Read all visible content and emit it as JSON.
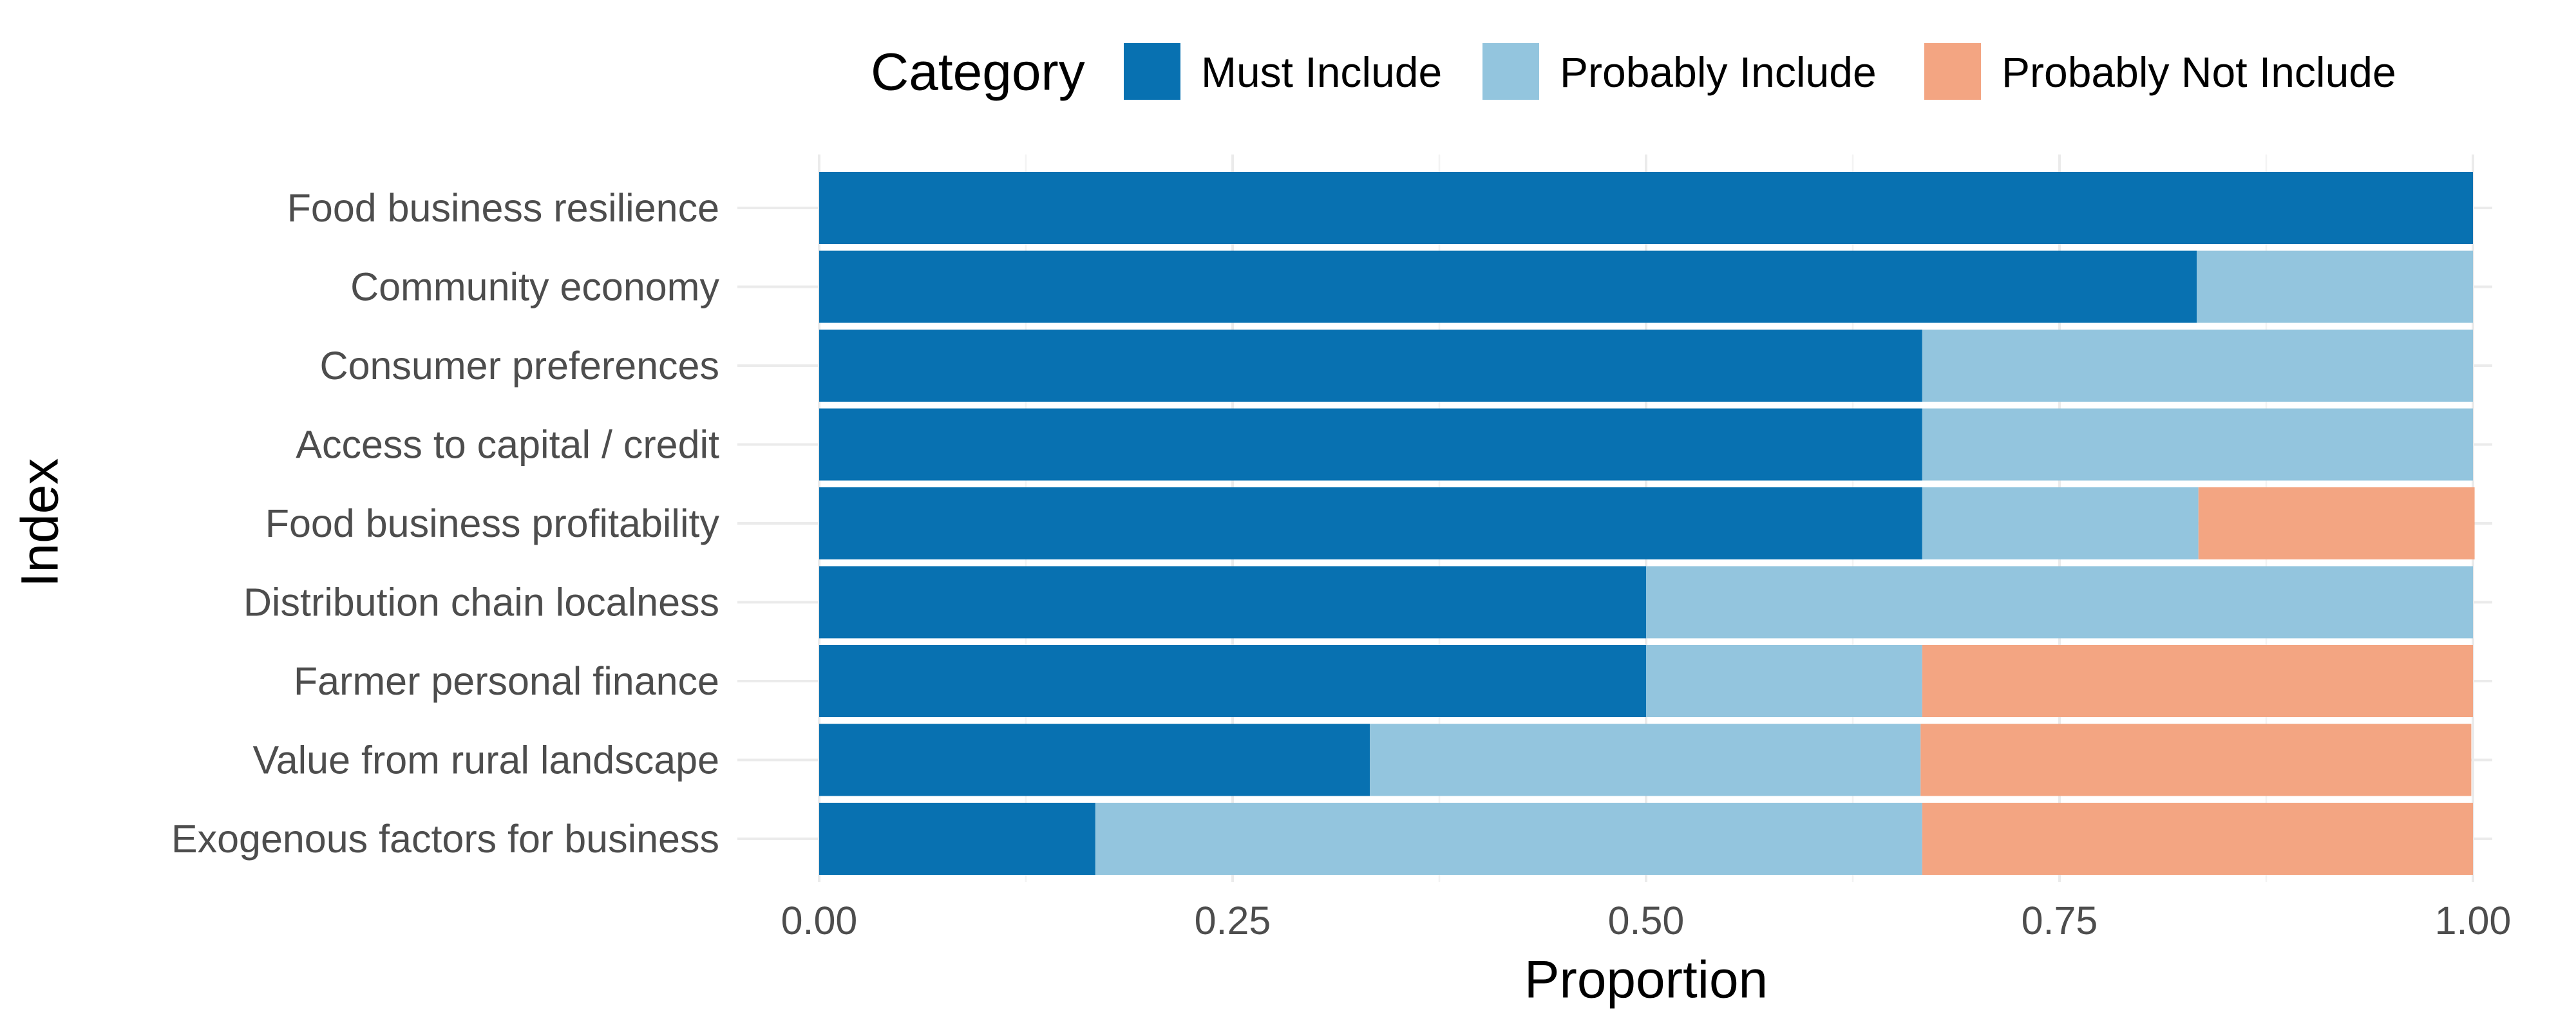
{
  "chart_data": {
    "type": "bar",
    "orientation": "horizontal",
    "stacked": true,
    "xlabel": "Proportion",
    "ylabel": "Index",
    "xlim": [
      0,
      1
    ],
    "x_ticks": [
      "0.00",
      "0.25",
      "0.50",
      "0.75",
      "1.00"
    ],
    "x_tick_values": [
      0,
      0.25,
      0.5,
      0.75,
      1
    ],
    "grid": true,
    "legend": {
      "title": "Category",
      "placement": "top"
    },
    "categories": [
      "Food business resilience",
      "Community economy",
      "Consumer preferences",
      "Access to capital / credit",
      "Food business profitability",
      "Distribution chain localness",
      "Farmer personal finance",
      "Value from rural landscape",
      "Exogenous factors for business"
    ],
    "series": [
      {
        "name": "Must Include",
        "color": "#0871b1",
        "values": [
          1.0,
          0.833,
          0.667,
          0.667,
          0.667,
          0.5,
          0.5,
          0.333,
          0.167
        ]
      },
      {
        "name": "Probably Include",
        "color": "#93c5de",
        "values": [
          0.0,
          0.167,
          0.333,
          0.333,
          0.167,
          0.5,
          0.167,
          0.333,
          0.5
        ]
      },
      {
        "name": "Probably Not Include",
        "color": "#f3a582",
        "values": [
          0.0,
          0.0,
          0.0,
          0.0,
          0.167,
          0.0,
          0.333,
          0.333,
          0.333
        ]
      }
    ]
  }
}
